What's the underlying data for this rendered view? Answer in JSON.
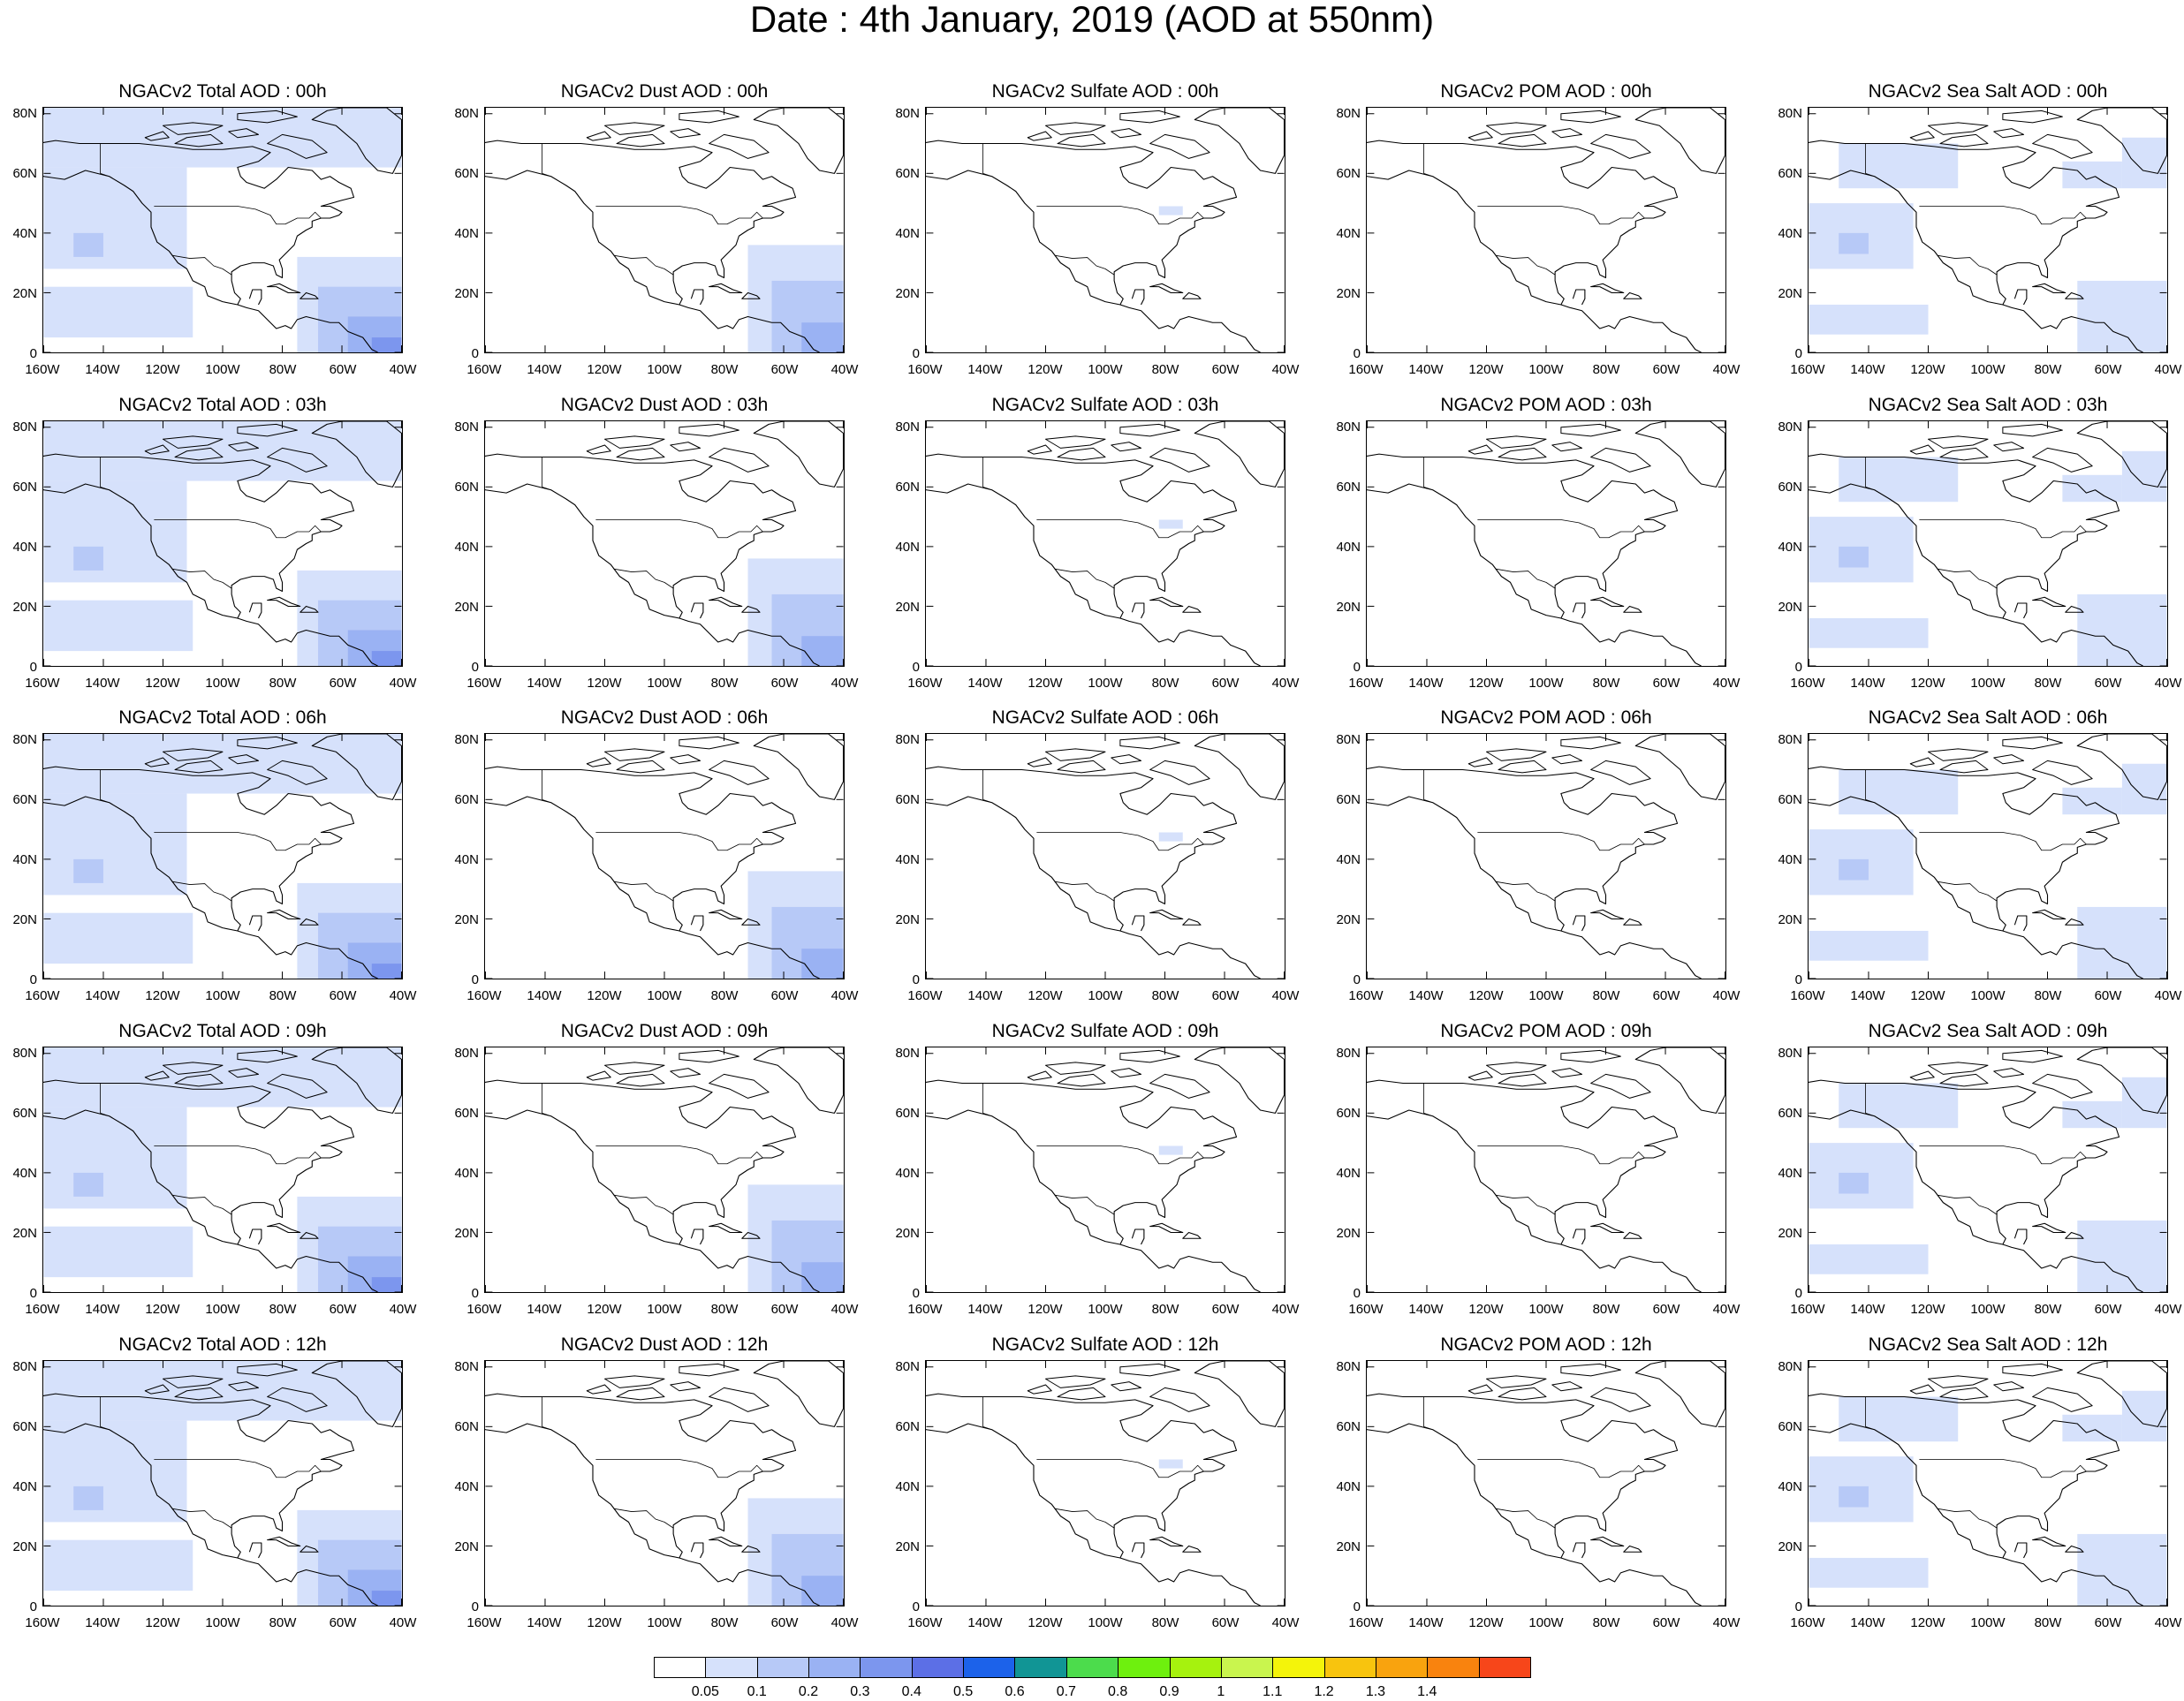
{
  "title": "Date : 4th January, 2019 (AOD at 550nm)",
  "map": {
    "lat_ticks": [
      "80N",
      "60N",
      "40N",
      "20N",
      "0"
    ],
    "lon_ticks": [
      "160W",
      "140W",
      "120W",
      "100W",
      "80W",
      "60W",
      "40W"
    ],
    "lat_range": [
      0,
      82
    ],
    "lon_range": [
      -160,
      -40
    ]
  },
  "species": [
    "total",
    "dust",
    "sulfate",
    "pom",
    "seasalt"
  ],
  "hours": [
    "00h",
    "03h",
    "06h",
    "09h",
    "12h"
  ],
  "panels": [
    [
      "NGACv2 Total AOD : 00h",
      "NGACv2 Dust AOD : 00h",
      "NGACv2 Sulfate AOD : 00h",
      "NGACv2 POM AOD : 00h",
      "NGACv2 Sea Salt AOD : 00h"
    ],
    [
      "NGACv2 Total AOD : 03h",
      "NGACv2 Dust AOD : 03h",
      "NGACv2 Sulfate AOD : 03h",
      "NGACv2 POM AOD : 03h",
      "NGACv2 Sea Salt AOD : 03h"
    ],
    [
      "NGACv2 Total AOD : 06h",
      "NGACv2 Dust AOD : 06h",
      "NGACv2 Sulfate AOD : 06h",
      "NGACv2 POM AOD : 06h",
      "NGACv2 Sea Salt AOD : 06h"
    ],
    [
      "NGACv2 Total AOD : 09h",
      "NGACv2 Dust AOD : 09h",
      "NGACv2 Sulfate AOD : 09h",
      "NGACv2 POM AOD : 09h",
      "NGACv2 Sea Salt  AOD : 09h"
    ],
    [
      "NGACv2 Total AOD  : 12h",
      "NGACv2 Dust AOD : 12h",
      "NGACv2 Sulfate AOD : 12h",
      "NGACv2 POM  AOD : 12h",
      "NGACv2 Sea Salt  AOD : 12h"
    ]
  ],
  "colorbar": {
    "labels": [
      "0.05",
      "0.1",
      "0.2",
      "0.3",
      "0.4",
      "0.5",
      "0.6",
      "0.7",
      "0.8",
      "0.9",
      "1",
      "1.1",
      "1.2",
      "1.3",
      "1.4"
    ],
    "colors": [
      "#ffffff",
      "#d6e1fb",
      "#b7c9f7",
      "#9ab2f3",
      "#7c96ee",
      "#5c6fe6",
      "#1c62ea",
      "#119595",
      "#4cdc4c",
      "#6ef00e",
      "#a6f20e",
      "#c9f54e",
      "#f4f40a",
      "#f8c40e",
      "#f9a30e",
      "#f9830e",
      "#f7461a"
    ]
  },
  "aod_fields": {
    "total": [
      {
        "lon": [
          -160,
          -40
        ],
        "lat": [
          62,
          82
        ],
        "level": 1
      },
      {
        "lon": [
          -160,
          -112
        ],
        "lat": [
          28,
          62
        ],
        "level": 1
      },
      {
        "lon": [
          -150,
          -140
        ],
        "lat": [
          32,
          40
        ],
        "level": 2
      },
      {
        "lon": [
          -160,
          -110
        ],
        "lat": [
          5,
          22
        ],
        "level": 1
      },
      {
        "lon": [
          -75,
          -40
        ],
        "lat": [
          0,
          32
        ],
        "level": 1
      },
      {
        "lon": [
          -68,
          -40
        ],
        "lat": [
          0,
          22
        ],
        "level": 2
      },
      {
        "lon": [
          -58,
          -40
        ],
        "lat": [
          0,
          12
        ],
        "level": 3
      },
      {
        "lon": [
          -50,
          -40
        ],
        "lat": [
          0,
          5
        ],
        "level": 4
      }
    ],
    "dust": [
      {
        "lon": [
          -72,
          -40
        ],
        "lat": [
          0,
          36
        ],
        "level": 1
      },
      {
        "lon": [
          -64,
          -40
        ],
        "lat": [
          0,
          24
        ],
        "level": 2
      },
      {
        "lon": [
          -54,
          -40
        ],
        "lat": [
          0,
          10
        ],
        "level": 3
      }
    ],
    "sulfate": [
      {
        "lon": [
          -82,
          -74
        ],
        "lat": [
          46,
          49
        ],
        "level": 1
      }
    ],
    "pom": [],
    "seasalt": [
      {
        "lon": [
          -150,
          -110
        ],
        "lat": [
          55,
          70
        ],
        "level": 1
      },
      {
        "lon": [
          -160,
          -125
        ],
        "lat": [
          28,
          50
        ],
        "level": 1
      },
      {
        "lon": [
          -150,
          -140
        ],
        "lat": [
          33,
          40
        ],
        "level": 2
      },
      {
        "lon": [
          -75,
          -55
        ],
        "lat": [
          55,
          64
        ],
        "level": 1
      },
      {
        "lon": [
          -55,
          -40
        ],
        "lat": [
          55,
          72
        ],
        "level": 1
      },
      {
        "lon": [
          -160,
          -120
        ],
        "lat": [
          6,
          16
        ],
        "level": 1
      },
      {
        "lon": [
          -70,
          -40
        ],
        "lat": [
          0,
          24
        ],
        "level": 1
      }
    ]
  }
}
